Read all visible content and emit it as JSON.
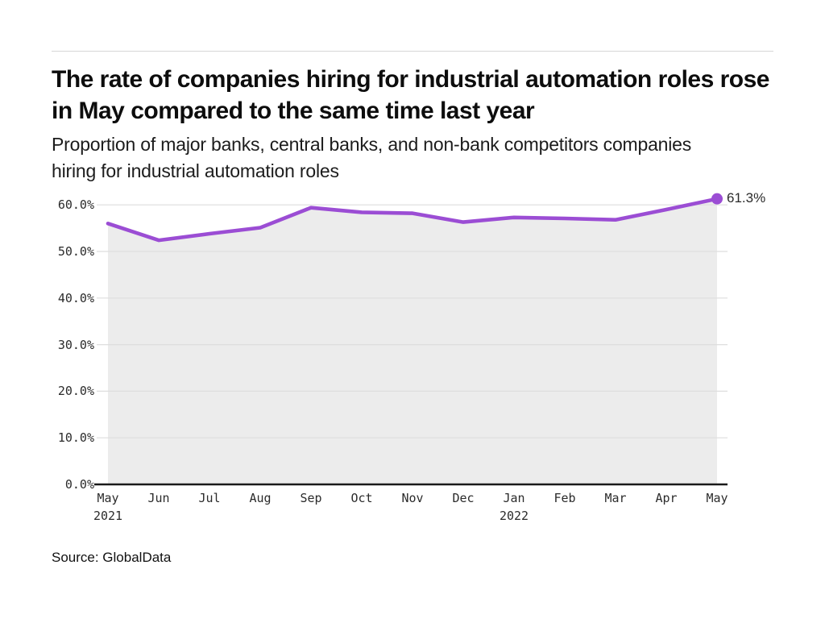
{
  "footer": {
    "source": "Source: GlobalData"
  },
  "chart_data": {
    "type": "line",
    "title": "The rate of companies hiring for industrial automation roles rose in May compared to the same time last year",
    "subtitle": "Proportion of major banks, central banks, and non-bank competitors companies hiring for industrial automation roles",
    "categories": [
      {
        "label": "May",
        "year": "2021"
      },
      {
        "label": "Jun"
      },
      {
        "label": "Jul"
      },
      {
        "label": "Aug"
      },
      {
        "label": "Sep"
      },
      {
        "label": "Oct"
      },
      {
        "label": "Nov"
      },
      {
        "label": "Dec"
      },
      {
        "label": "Jan",
        "year": "2022"
      },
      {
        "label": "Feb"
      },
      {
        "label": "Mar"
      },
      {
        "label": "Apr"
      },
      {
        "label": "May"
      }
    ],
    "series": [
      {
        "name": "Proportion of companies hiring for industrial automation roles",
        "values": [
          56.0,
          52.4,
          53.8,
          55.1,
          59.4,
          58.4,
          58.2,
          56.3,
          57.3,
          57.1,
          56.8,
          59.0,
          61.3
        ]
      }
    ],
    "end_label": "61.3%",
    "ylim": [
      0,
      65
    ],
    "yticks": [
      {
        "value": 0,
        "label": "0.0%"
      },
      {
        "value": 10,
        "label": "10.0%"
      },
      {
        "value": 20,
        "label": "20.0%"
      },
      {
        "value": 30,
        "label": "30.0%"
      },
      {
        "value": 40,
        "label": "40.0%"
      },
      {
        "value": 50,
        "label": "50.0%"
      },
      {
        "value": 60,
        "label": "60.0%"
      }
    ],
    "grid": true,
    "legend": "none",
    "colors": {
      "line": "#9b4dd4",
      "marker": "#9b4dd4",
      "area_fill": "#ececec",
      "grid": "#dedede",
      "axis": "#1a1a1a"
    }
  }
}
